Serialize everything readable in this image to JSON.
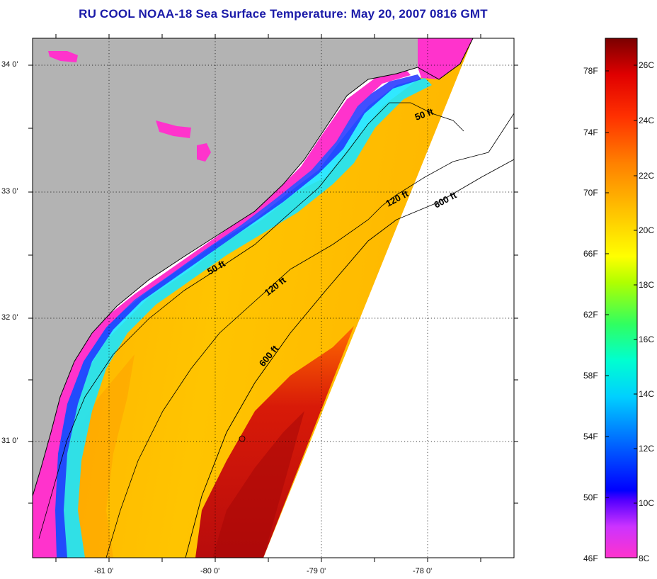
{
  "title": "RU COOL  NOAA-18  Sea Surface Temperature:  May 20, 2007 0816 GMT",
  "map": {
    "lat_labels": [
      "34 0'",
      "33 0'",
      "32 0'",
      "31 0'"
    ],
    "lon_labels": [
      "-81 0'",
      "-80 0'",
      "-79 0'",
      "-78 0'"
    ],
    "contour_labels": [
      {
        "text": "50 ft"
      },
      {
        "text": "120 ft"
      },
      {
        "text": "600 ft"
      },
      {
        "text": "50 ft"
      },
      {
        "text": "120 ft"
      },
      {
        "text": "600 ft"
      }
    ],
    "colors": {
      "land": "#b3b3b3",
      "no_data": "#ffffff",
      "cold_coast": "#ff33cc",
      "cool": "#1e3cff",
      "mid": "#00e6ff",
      "warm": "#ffb300",
      "hot": "#cc1010"
    }
  },
  "colorbar": {
    "f_labels": [
      "78F",
      "74F",
      "70F",
      "66F",
      "62F",
      "58F",
      "54F",
      "50F",
      "46F"
    ],
    "c_labels": [
      "26C",
      "24C",
      "22C",
      "20C",
      "18C",
      "16C",
      "14C",
      "12C",
      "10C",
      "8C"
    ],
    "range_c": [
      8,
      27
    ]
  }
}
